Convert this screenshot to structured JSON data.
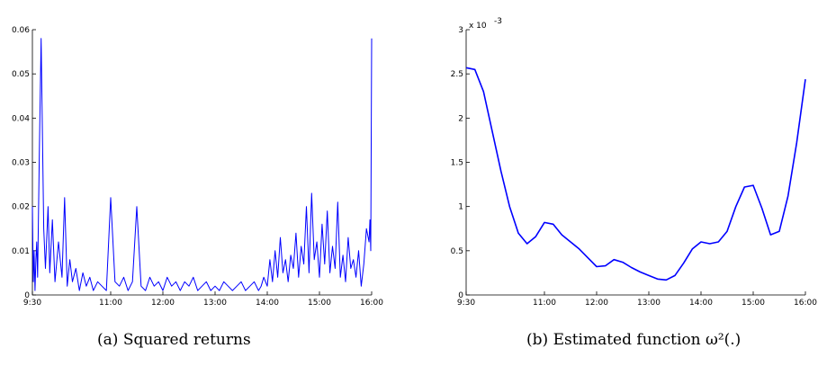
{
  "captions": {
    "a_label": "(a)",
    "a_text": "Squared returns",
    "b_label": "(b)",
    "b_text": "Estimated function ω²(.)"
  },
  "colors": {
    "line": "#0000ff",
    "axis": "#000000"
  },
  "chart_data": [
    {
      "type": "line",
      "title": "",
      "xlabel": "",
      "ylabel": "",
      "x_ticks": [
        "9:30",
        "11:00",
        "12:00",
        "13:00",
        "14:00",
        "15:00",
        "16:00"
      ],
      "x_range": [
        "9:30",
        "16:00"
      ],
      "ylim": [
        0,
        0.06
      ],
      "y_ticks": [
        "0",
        "0.01",
        "0.02",
        "0.03",
        "0.04",
        "0.05",
        "0.06"
      ],
      "grid": false,
      "series": [
        {
          "x": [
            "9:30",
            "9:31",
            "9:32",
            "9:33",
            "9:34",
            "9:35",
            "9:36",
            "9:38",
            "9:40",
            "9:43",
            "9:45",
            "9:48",
            "9:50",
            "9:53",
            "9:56",
            "10:00",
            "10:04",
            "10:07",
            "10:10",
            "10:13",
            "10:16",
            "10:20",
            "10:24",
            "10:28",
            "10:32",
            "10:36",
            "10:40",
            "10:45",
            "10:50",
            "10:55",
            "11:00",
            "11:05",
            "11:10",
            "11:15",
            "11:20",
            "11:25",
            "11:30",
            "11:35",
            "11:40",
            "11:45",
            "11:50",
            "11:55",
            "12:00",
            "12:05",
            "12:10",
            "12:15",
            "12:20",
            "12:25",
            "12:30",
            "12:35",
            "12:40",
            "12:45",
            "12:50",
            "12:55",
            "13:00",
            "13:05",
            "13:10",
            "13:15",
            "13:20",
            "13:25",
            "13:30",
            "13:35",
            "13:40",
            "13:45",
            "13:50",
            "13:53",
            "13:56",
            "14:00",
            "14:03",
            "14:06",
            "14:09",
            "14:12",
            "14:15",
            "14:18",
            "14:21",
            "14:24",
            "14:27",
            "14:30",
            "14:33",
            "14:36",
            "14:39",
            "14:42",
            "14:45",
            "14:48",
            "14:51",
            "14:54",
            "14:57",
            "15:00",
            "15:03",
            "15:06",
            "15:09",
            "15:12",
            "15:15",
            "15:18",
            "15:21",
            "15:24",
            "15:27",
            "15:30",
            "15:33",
            "15:36",
            "15:39",
            "15:42",
            "15:45",
            "15:48",
            "15:51",
            "15:54",
            "15:57",
            "15:58",
            "15:59",
            "16:00"
          ],
          "values": [
            0.02,
            0.003,
            0.01,
            0.001,
            0.008,
            0.012,
            0.004,
            0.032,
            0.058,
            0.015,
            0.006,
            0.02,
            0.005,
            0.017,
            0.003,
            0.012,
            0.004,
            0.022,
            0.002,
            0.008,
            0.003,
            0.006,
            0.001,
            0.005,
            0.002,
            0.004,
            0.001,
            0.003,
            0.002,
            0.001,
            0.022,
            0.003,
            0.002,
            0.004,
            0.001,
            0.003,
            0.02,
            0.002,
            0.001,
            0.004,
            0.002,
            0.003,
            0.001,
            0.004,
            0.002,
            0.003,
            0.001,
            0.003,
            0.002,
            0.004,
            0.001,
            0.002,
            0.003,
            0.001,
            0.002,
            0.001,
            0.003,
            0.002,
            0.001,
            0.002,
            0.003,
            0.001,
            0.002,
            0.003,
            0.001,
            0.002,
            0.004,
            0.002,
            0.008,
            0.003,
            0.01,
            0.004,
            0.013,
            0.005,
            0.008,
            0.003,
            0.009,
            0.006,
            0.014,
            0.004,
            0.011,
            0.007,
            0.02,
            0.005,
            0.023,
            0.008,
            0.012,
            0.004,
            0.016,
            0.007,
            0.019,
            0.005,
            0.011,
            0.006,
            0.021,
            0.004,
            0.009,
            0.003,
            0.013,
            0.006,
            0.008,
            0.004,
            0.01,
            0.002,
            0.007,
            0.015,
            0.012,
            0.017,
            0.01,
            0.058
          ]
        }
      ]
    },
    {
      "type": "line",
      "title": "",
      "xlabel": "",
      "ylabel": "",
      "y_scale_label": "x 10",
      "y_scale_exponent": "-3",
      "x_ticks": [
        "9:30",
        "11:00",
        "12:00",
        "13:00",
        "14:00",
        "15:00",
        "16:00"
      ],
      "x_range": [
        "9:30",
        "16:00"
      ],
      "ylim": [
        0,
        3
      ],
      "y_ticks": [
        "0",
        "0.5",
        "1",
        "1.5",
        "2",
        "2.5",
        "3"
      ],
      "grid": false,
      "series": [
        {
          "x": [
            "9:30",
            "9:40",
            "9:50",
            "10:00",
            "10:10",
            "10:20",
            "10:30",
            "10:40",
            "10:50",
            "11:00",
            "11:10",
            "11:20",
            "11:30",
            "11:40",
            "11:50",
            "12:00",
            "12:10",
            "12:20",
            "12:30",
            "12:40",
            "12:50",
            "13:00",
            "13:10",
            "13:20",
            "13:30",
            "13:40",
            "13:50",
            "14:00",
            "14:10",
            "14:20",
            "14:30",
            "14:40",
            "14:50",
            "15:00",
            "15:10",
            "15:20",
            "15:30",
            "15:40",
            "15:50",
            "16:00"
          ],
          "values": [
            2.57,
            2.55,
            2.3,
            1.85,
            1.4,
            1.0,
            0.7,
            0.58,
            0.66,
            0.82,
            0.8,
            0.68,
            0.6,
            0.52,
            0.42,
            0.32,
            0.33,
            0.4,
            0.37,
            0.31,
            0.26,
            0.22,
            0.18,
            0.17,
            0.22,
            0.36,
            0.52,
            0.6,
            0.58,
            0.6,
            0.72,
            1.0,
            1.22,
            1.24,
            0.98,
            0.68,
            0.72,
            1.12,
            1.72,
            2.44
          ]
        }
      ]
    }
  ]
}
